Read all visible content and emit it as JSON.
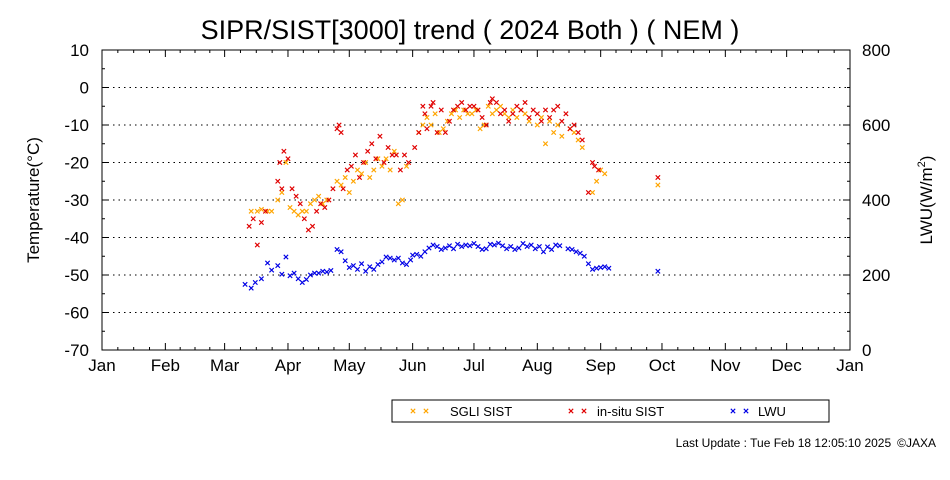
{
  "footer": {
    "last_update": "Last Update : Tue Feb 18 12:05:10 2025",
    "copyright": "©JAXA"
  },
  "chart_data": {
    "type": "scatter",
    "title": "SIPR/SIST[3000] trend ( 2024 Both ) ( NEM )",
    "ylabel": "Temperature(°C)",
    "y2label": "LWU(W/m²)",
    "y2label_base": "LWU(W/m",
    "y2label_sup": "2",
    "y2label_end": ")",
    "categories": [
      "Jan",
      "Feb",
      "Mar",
      "Apr",
      "May",
      "Jun",
      "Jul",
      "Aug",
      "Sep",
      "Oct",
      "Nov",
      "Dec",
      "Jan"
    ],
    "ylim": [
      -70,
      10
    ],
    "yticks": [
      10,
      0,
      -10,
      -20,
      -30,
      -40,
      -50,
      -60,
      -70
    ],
    "y2lim": [
      0,
      800
    ],
    "y2ticks": [
      800,
      600,
      400,
      200,
      0
    ],
    "xlim_day": [
      0,
      366
    ],
    "grid": "dotted horizontal",
    "legend_position": "bottom",
    "series": [
      {
        "name": "SGLI SIST",
        "axis": "left",
        "color": "#ffa500",
        "points": [
          [
            73,
            -33
          ],
          [
            76,
            -33
          ],
          [
            78,
            -32.5
          ],
          [
            81,
            -33
          ],
          [
            83,
            -33
          ],
          [
            86,
            -30
          ],
          [
            88,
            -28
          ],
          [
            90,
            -20
          ],
          [
            92,
            -32
          ],
          [
            94,
            -33
          ],
          [
            96,
            -34
          ],
          [
            98,
            -33
          ],
          [
            100,
            -33
          ],
          [
            102,
            -31
          ],
          [
            104,
            -30
          ],
          [
            106,
            -29
          ],
          [
            108,
            -31
          ],
          [
            110,
            -30
          ],
          [
            115,
            -25
          ],
          [
            117,
            -26
          ],
          [
            119,
            -24
          ],
          [
            121,
            -28
          ],
          [
            123,
            -25
          ],
          [
            125,
            -22
          ],
          [
            127,
            -23
          ],
          [
            129,
            -20
          ],
          [
            131,
            -24
          ],
          [
            133,
            -22
          ],
          [
            135,
            -19
          ],
          [
            137,
            -21
          ],
          [
            139,
            -19
          ],
          [
            141,
            -22
          ],
          [
            143,
            -17
          ],
          [
            145,
            -31
          ],
          [
            147,
            -30
          ],
          [
            149,
            -21
          ],
          [
            155,
            -12
          ],
          [
            157,
            -10
          ],
          [
            159,
            -8
          ],
          [
            161,
            -10
          ],
          [
            163,
            -7
          ],
          [
            165,
            -12
          ],
          [
            167,
            -11
          ],
          [
            169,
            -9
          ],
          [
            171,
            -7
          ],
          [
            173,
            -6
          ],
          [
            175,
            -8
          ],
          [
            177,
            -6
          ],
          [
            179,
            -7
          ],
          [
            181,
            -7
          ],
          [
            183,
            -6
          ],
          [
            185,
            -11
          ],
          [
            187,
            -10
          ],
          [
            189,
            -5
          ],
          [
            191,
            -7
          ],
          [
            193,
            -6
          ],
          [
            195,
            -5
          ],
          [
            197,
            -7
          ],
          [
            199,
            -8
          ],
          [
            201,
            -6
          ],
          [
            203,
            -8
          ],
          [
            205,
            -6
          ],
          [
            207,
            -7
          ],
          [
            209,
            -9
          ],
          [
            213,
            -10
          ],
          [
            215,
            -8
          ],
          [
            217,
            -15
          ],
          [
            219,
            -9
          ],
          [
            221,
            -12
          ],
          [
            223,
            -10
          ],
          [
            225,
            -13
          ],
          [
            229,
            -11
          ],
          [
            231,
            -12
          ],
          [
            233,
            -14
          ],
          [
            235,
            -16
          ],
          [
            240,
            -28
          ],
          [
            242,
            -25
          ],
          [
            244,
            -22
          ],
          [
            246,
            -23
          ],
          [
            272,
            -26
          ]
        ]
      },
      {
        "name": "in-situ SIST",
        "axis": "left",
        "color": "#e00000",
        "points": [
          [
            72,
            -37
          ],
          [
            74,
            -35
          ],
          [
            76,
            -42
          ],
          [
            78,
            -36
          ],
          [
            80,
            -33
          ],
          [
            86,
            -25
          ],
          [
            87,
            -20
          ],
          [
            88,
            -27
          ],
          [
            89,
            -17
          ],
          [
            91,
            -19
          ],
          [
            93,
            -27
          ],
          [
            95,
            -29
          ],
          [
            97,
            -31
          ],
          [
            99,
            -35
          ],
          [
            101,
            -38
          ],
          [
            103,
            -37
          ],
          [
            105,
            -33
          ],
          [
            107,
            -31
          ],
          [
            109,
            -32
          ],
          [
            111,
            -30
          ],
          [
            113,
            -27
          ],
          [
            115,
            -11
          ],
          [
            116,
            -10
          ],
          [
            117,
            -12
          ],
          [
            118,
            -27
          ],
          [
            120,
            -22
          ],
          [
            122,
            -21
          ],
          [
            124,
            -18
          ],
          [
            126,
            -24
          ],
          [
            128,
            -20
          ],
          [
            130,
            -17
          ],
          [
            132,
            -15
          ],
          [
            134,
            -19
          ],
          [
            136,
            -13
          ],
          [
            138,
            -20
          ],
          [
            140,
            -16
          ],
          [
            142,
            -18
          ],
          [
            144,
            -18
          ],
          [
            146,
            -22
          ],
          [
            148,
            -18
          ],
          [
            150,
            -20
          ],
          [
            153,
            -16
          ],
          [
            155,
            -12
          ],
          [
            157,
            -5
          ],
          [
            158,
            -7
          ],
          [
            159,
            -11
          ],
          [
            161,
            -5
          ],
          [
            162,
            -4
          ],
          [
            164,
            -12
          ],
          [
            166,
            -6
          ],
          [
            168,
            -12
          ],
          [
            170,
            -9
          ],
          [
            172,
            -6
          ],
          [
            174,
            -5
          ],
          [
            176,
            -4
          ],
          [
            178,
            -6
          ],
          [
            180,
            -5
          ],
          [
            182,
            -5
          ],
          [
            184,
            -6
          ],
          [
            186,
            -8
          ],
          [
            188,
            -10
          ],
          [
            190,
            -4
          ],
          [
            191,
            -3
          ],
          [
            193,
            -4
          ],
          [
            195,
            -7
          ],
          [
            197,
            -6
          ],
          [
            199,
            -9
          ],
          [
            201,
            -7
          ],
          [
            203,
            -5
          ],
          [
            205,
            -6
          ],
          [
            207,
            -4
          ],
          [
            209,
            -8
          ],
          [
            211,
            -6
          ],
          [
            213,
            -7
          ],
          [
            215,
            -9
          ],
          [
            217,
            -6
          ],
          [
            219,
            -8
          ],
          [
            221,
            -6
          ],
          [
            223,
            -5
          ],
          [
            225,
            -9
          ],
          [
            227,
            -7
          ],
          [
            229,
            -11
          ],
          [
            231,
            -10
          ],
          [
            233,
            -12
          ],
          [
            235,
            -14
          ],
          [
            238,
            -28
          ],
          [
            240,
            -20
          ],
          [
            241,
            -21
          ],
          [
            243,
            -22
          ],
          [
            272,
            -24
          ]
        ]
      },
      {
        "name": "LWU",
        "axis": "right",
        "color": "#0000e6",
        "points": [
          [
            70,
            175
          ],
          [
            73,
            165
          ],
          [
            75,
            180
          ],
          [
            78,
            190
          ],
          [
            81,
            232
          ],
          [
            83,
            213
          ],
          [
            86,
            225
          ],
          [
            88,
            202
          ],
          [
            90,
            248
          ],
          [
            92,
            198
          ],
          [
            94,
            205
          ],
          [
            96,
            190
          ],
          [
            98,
            180
          ],
          [
            100,
            188
          ],
          [
            102,
            200
          ],
          [
            104,
            205
          ],
          [
            106,
            205
          ],
          [
            108,
            210
          ],
          [
            110,
            208
          ],
          [
            112,
            212
          ],
          [
            115,
            268
          ],
          [
            117,
            262
          ],
          [
            119,
            238
          ],
          [
            121,
            220
          ],
          [
            123,
            225
          ],
          [
            125,
            215
          ],
          [
            127,
            230
          ],
          [
            129,
            210
          ],
          [
            131,
            222
          ],
          [
            133,
            215
          ],
          [
            135,
            228
          ],
          [
            137,
            235
          ],
          [
            139,
            248
          ],
          [
            141,
            245
          ],
          [
            143,
            240
          ],
          [
            145,
            245
          ],
          [
            147,
            232
          ],
          [
            149,
            228
          ],
          [
            151,
            240
          ],
          [
            152,
            253
          ],
          [
            154,
            255
          ],
          [
            156,
            250
          ],
          [
            158,
            262
          ],
          [
            160,
            272
          ],
          [
            162,
            280
          ],
          [
            164,
            276
          ],
          [
            166,
            268
          ],
          [
            168,
            272
          ],
          [
            170,
            278
          ],
          [
            172,
            270
          ],
          [
            174,
            282
          ],
          [
            176,
            276
          ],
          [
            178,
            280
          ],
          [
            180,
            278
          ],
          [
            182,
            284
          ],
          [
            184,
            276
          ],
          [
            186,
            268
          ],
          [
            188,
            270
          ],
          [
            190,
            282
          ],
          [
            192,
            280
          ],
          [
            194,
            285
          ],
          [
            196,
            278
          ],
          [
            198,
            270
          ],
          [
            200,
            276
          ],
          [
            202,
            268
          ],
          [
            204,
            272
          ],
          [
            206,
            284
          ],
          [
            208,
            276
          ],
          [
            210,
            280
          ],
          [
            212,
            270
          ],
          [
            214,
            276
          ],
          [
            216,
            262
          ],
          [
            218,
            275
          ],
          [
            220,
            268
          ],
          [
            222,
            280
          ],
          [
            224,
            278
          ],
          [
            228,
            270
          ],
          [
            230,
            268
          ],
          [
            232,
            262
          ],
          [
            234,
            258
          ],
          [
            236,
            250
          ],
          [
            238,
            230
          ],
          [
            240,
            215
          ],
          [
            242,
            218
          ],
          [
            244,
            220
          ],
          [
            246,
            222
          ],
          [
            248,
            218
          ],
          [
            272,
            210
          ]
        ]
      }
    ]
  }
}
